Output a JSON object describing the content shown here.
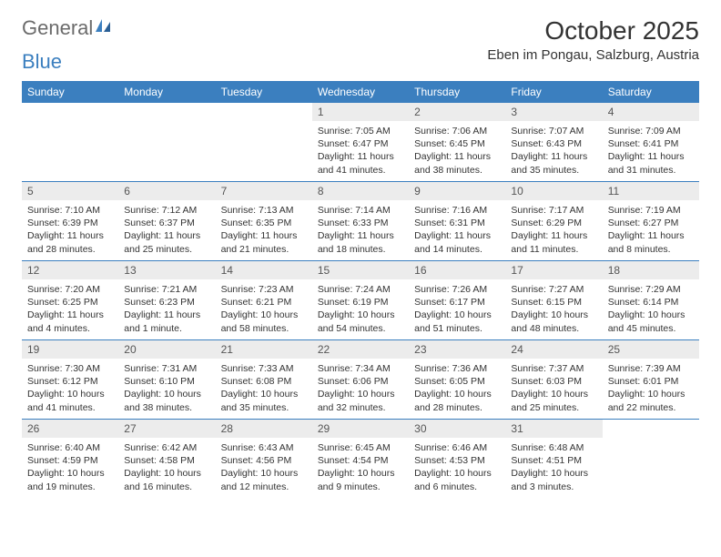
{
  "logo": {
    "text1": "General",
    "text2": "Blue"
  },
  "title": "October 2025",
  "location": "Eben im Pongau, Salzburg, Austria",
  "colors": {
    "header_bg": "#3b7fbf",
    "header_text": "#ffffff",
    "daynum_bg": "#ececec",
    "daynum_text": "#555555",
    "body_text": "#333333",
    "rule": "#3b7fbf"
  },
  "day_headers": [
    "Sunday",
    "Monday",
    "Tuesday",
    "Wednesday",
    "Thursday",
    "Friday",
    "Saturday"
  ],
  "weeks": [
    [
      {
        "empty": true
      },
      {
        "empty": true
      },
      {
        "empty": true
      },
      {
        "num": "1",
        "sunrise": "Sunrise: 7:05 AM",
        "sunset": "Sunset: 6:47 PM",
        "daylight1": "Daylight: 11 hours",
        "daylight2": "and 41 minutes."
      },
      {
        "num": "2",
        "sunrise": "Sunrise: 7:06 AM",
        "sunset": "Sunset: 6:45 PM",
        "daylight1": "Daylight: 11 hours",
        "daylight2": "and 38 minutes."
      },
      {
        "num": "3",
        "sunrise": "Sunrise: 7:07 AM",
        "sunset": "Sunset: 6:43 PM",
        "daylight1": "Daylight: 11 hours",
        "daylight2": "and 35 minutes."
      },
      {
        "num": "4",
        "sunrise": "Sunrise: 7:09 AM",
        "sunset": "Sunset: 6:41 PM",
        "daylight1": "Daylight: 11 hours",
        "daylight2": "and 31 minutes."
      }
    ],
    [
      {
        "num": "5",
        "sunrise": "Sunrise: 7:10 AM",
        "sunset": "Sunset: 6:39 PM",
        "daylight1": "Daylight: 11 hours",
        "daylight2": "and 28 minutes."
      },
      {
        "num": "6",
        "sunrise": "Sunrise: 7:12 AM",
        "sunset": "Sunset: 6:37 PM",
        "daylight1": "Daylight: 11 hours",
        "daylight2": "and 25 minutes."
      },
      {
        "num": "7",
        "sunrise": "Sunrise: 7:13 AM",
        "sunset": "Sunset: 6:35 PM",
        "daylight1": "Daylight: 11 hours",
        "daylight2": "and 21 minutes."
      },
      {
        "num": "8",
        "sunrise": "Sunrise: 7:14 AM",
        "sunset": "Sunset: 6:33 PM",
        "daylight1": "Daylight: 11 hours",
        "daylight2": "and 18 minutes."
      },
      {
        "num": "9",
        "sunrise": "Sunrise: 7:16 AM",
        "sunset": "Sunset: 6:31 PM",
        "daylight1": "Daylight: 11 hours",
        "daylight2": "and 14 minutes."
      },
      {
        "num": "10",
        "sunrise": "Sunrise: 7:17 AM",
        "sunset": "Sunset: 6:29 PM",
        "daylight1": "Daylight: 11 hours",
        "daylight2": "and 11 minutes."
      },
      {
        "num": "11",
        "sunrise": "Sunrise: 7:19 AM",
        "sunset": "Sunset: 6:27 PM",
        "daylight1": "Daylight: 11 hours",
        "daylight2": "and 8 minutes."
      }
    ],
    [
      {
        "num": "12",
        "sunrise": "Sunrise: 7:20 AM",
        "sunset": "Sunset: 6:25 PM",
        "daylight1": "Daylight: 11 hours",
        "daylight2": "and 4 minutes."
      },
      {
        "num": "13",
        "sunrise": "Sunrise: 7:21 AM",
        "sunset": "Sunset: 6:23 PM",
        "daylight1": "Daylight: 11 hours",
        "daylight2": "and 1 minute."
      },
      {
        "num": "14",
        "sunrise": "Sunrise: 7:23 AM",
        "sunset": "Sunset: 6:21 PM",
        "daylight1": "Daylight: 10 hours",
        "daylight2": "and 58 minutes."
      },
      {
        "num": "15",
        "sunrise": "Sunrise: 7:24 AM",
        "sunset": "Sunset: 6:19 PM",
        "daylight1": "Daylight: 10 hours",
        "daylight2": "and 54 minutes."
      },
      {
        "num": "16",
        "sunrise": "Sunrise: 7:26 AM",
        "sunset": "Sunset: 6:17 PM",
        "daylight1": "Daylight: 10 hours",
        "daylight2": "and 51 minutes."
      },
      {
        "num": "17",
        "sunrise": "Sunrise: 7:27 AM",
        "sunset": "Sunset: 6:15 PM",
        "daylight1": "Daylight: 10 hours",
        "daylight2": "and 48 minutes."
      },
      {
        "num": "18",
        "sunrise": "Sunrise: 7:29 AM",
        "sunset": "Sunset: 6:14 PM",
        "daylight1": "Daylight: 10 hours",
        "daylight2": "and 45 minutes."
      }
    ],
    [
      {
        "num": "19",
        "sunrise": "Sunrise: 7:30 AM",
        "sunset": "Sunset: 6:12 PM",
        "daylight1": "Daylight: 10 hours",
        "daylight2": "and 41 minutes."
      },
      {
        "num": "20",
        "sunrise": "Sunrise: 7:31 AM",
        "sunset": "Sunset: 6:10 PM",
        "daylight1": "Daylight: 10 hours",
        "daylight2": "and 38 minutes."
      },
      {
        "num": "21",
        "sunrise": "Sunrise: 7:33 AM",
        "sunset": "Sunset: 6:08 PM",
        "daylight1": "Daylight: 10 hours",
        "daylight2": "and 35 minutes."
      },
      {
        "num": "22",
        "sunrise": "Sunrise: 7:34 AM",
        "sunset": "Sunset: 6:06 PM",
        "daylight1": "Daylight: 10 hours",
        "daylight2": "and 32 minutes."
      },
      {
        "num": "23",
        "sunrise": "Sunrise: 7:36 AM",
        "sunset": "Sunset: 6:05 PM",
        "daylight1": "Daylight: 10 hours",
        "daylight2": "and 28 minutes."
      },
      {
        "num": "24",
        "sunrise": "Sunrise: 7:37 AM",
        "sunset": "Sunset: 6:03 PM",
        "daylight1": "Daylight: 10 hours",
        "daylight2": "and 25 minutes."
      },
      {
        "num": "25",
        "sunrise": "Sunrise: 7:39 AM",
        "sunset": "Sunset: 6:01 PM",
        "daylight1": "Daylight: 10 hours",
        "daylight2": "and 22 minutes."
      }
    ],
    [
      {
        "num": "26",
        "sunrise": "Sunrise: 6:40 AM",
        "sunset": "Sunset: 4:59 PM",
        "daylight1": "Daylight: 10 hours",
        "daylight2": "and 19 minutes."
      },
      {
        "num": "27",
        "sunrise": "Sunrise: 6:42 AM",
        "sunset": "Sunset: 4:58 PM",
        "daylight1": "Daylight: 10 hours",
        "daylight2": "and 16 minutes."
      },
      {
        "num": "28",
        "sunrise": "Sunrise: 6:43 AM",
        "sunset": "Sunset: 4:56 PM",
        "daylight1": "Daylight: 10 hours",
        "daylight2": "and 12 minutes."
      },
      {
        "num": "29",
        "sunrise": "Sunrise: 6:45 AM",
        "sunset": "Sunset: 4:54 PM",
        "daylight1": "Daylight: 10 hours",
        "daylight2": "and 9 minutes."
      },
      {
        "num": "30",
        "sunrise": "Sunrise: 6:46 AM",
        "sunset": "Sunset: 4:53 PM",
        "daylight1": "Daylight: 10 hours",
        "daylight2": "and 6 minutes."
      },
      {
        "num": "31",
        "sunrise": "Sunrise: 6:48 AM",
        "sunset": "Sunset: 4:51 PM",
        "daylight1": "Daylight: 10 hours",
        "daylight2": "and 3 minutes."
      },
      {
        "empty": true
      }
    ]
  ]
}
